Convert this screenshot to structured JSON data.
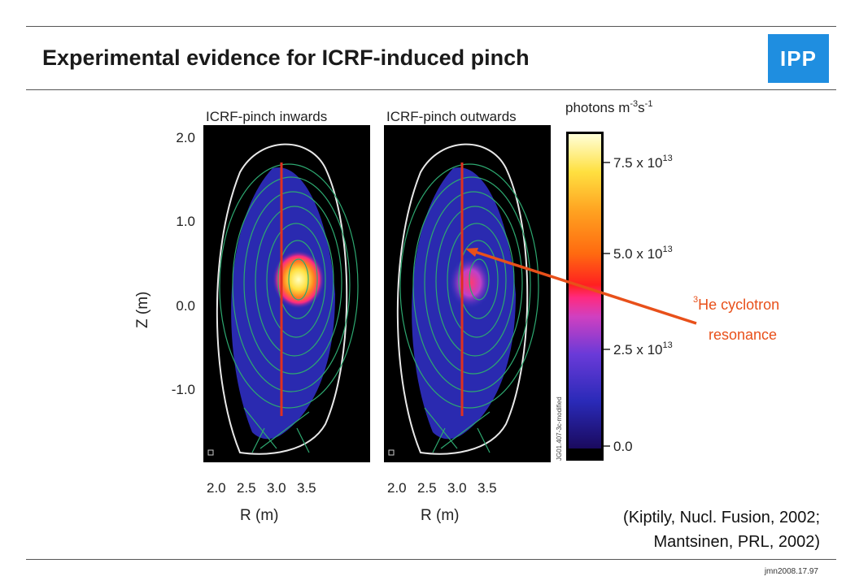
{
  "slide": {
    "title": "Experimental evidence for ICRF-induced pinch",
    "logo_text": "IPP",
    "footer_id": "jmn2008.17.97"
  },
  "figure": {
    "panel_left_title": "ICRF-pinch inwards",
    "panel_right_title": "ICRF-pinch outwards",
    "y_axis_label": "Z (m)",
    "y_ticks": [
      "2.0",
      "1.0",
      "0.0",
      "-1.0"
    ],
    "x_axis_label": "R (m)",
    "x_ticks": [
      "2.0",
      "2.5",
      "3.0",
      "3.5"
    ],
    "colorbar_title": "photons m",
    "colorbar_title_sup1": "-3",
    "colorbar_title_mid": "s",
    "colorbar_title_sup2": "-1",
    "colorbar_ticks": [
      {
        "base": "7.5 x 10",
        "exp": "13"
      },
      {
        "base": "5.0 x 10",
        "exp": "13"
      },
      {
        "base": "2.5 x 10",
        "exp": "13"
      },
      {
        "base": "0.0",
        "exp": ""
      }
    ],
    "side_code": "JG01.407-3c-modified"
  },
  "annotation": {
    "sup": "3",
    "line1": "He cyclotron",
    "line2": "resonance",
    "color": "#e8501a"
  },
  "citation": {
    "line1": "(Kiptily, Nucl. Fusion, 2002;",
    "line2": "Mantsinen, PRL, 2002)"
  }
}
